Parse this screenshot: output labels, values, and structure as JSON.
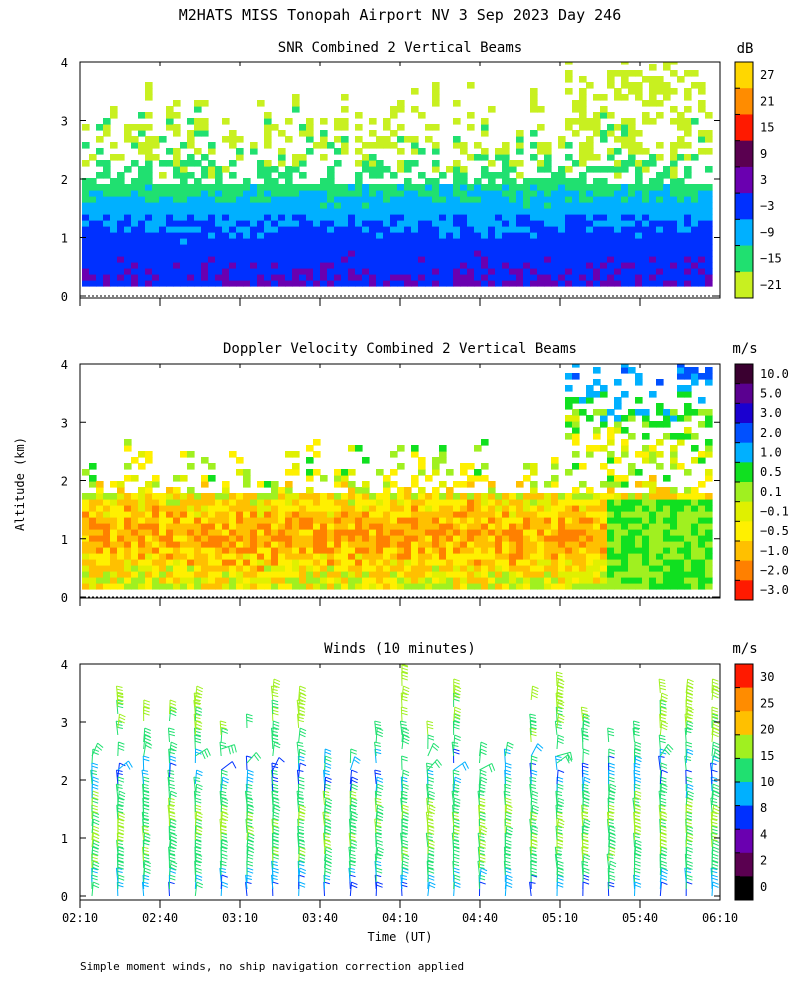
{
  "figure": {
    "title": "M2HATS MISS Tonopah Airport NV   3 Sep 2023 Day 246",
    "ylabel": "Altitude (km)",
    "xlabel": "Time (UT)",
    "footnote": "Simple moment winds, no ship navigation correction applied"
  },
  "chart_data": [
    {
      "type": "heatmap",
      "title": "SNR Combined 2 Vertical Beams",
      "units": "dB",
      "xlabel": "",
      "ylabel": "Altitude (km)",
      "ylim": [
        0,
        4
      ],
      "yticks": [
        "0",
        "1",
        "2",
        "3",
        "4"
      ],
      "xlim": [
        "02:10",
        "06:10"
      ],
      "colorbar_labels": [
        "27",
        "21",
        "15",
        "9",
        "3",
        "−3",
        "−9",
        "−15",
        "−21"
      ],
      "colorbar_colors": [
        "#ffd700",
        "#ff8c00",
        "#ff1a00",
        "#5a0050",
        "#6a00b0",
        "#0030ff",
        "#00b0ff",
        "#20e070",
        "#c8f020"
      ],
      "profile": {
        "altitude_km": [
          0.15,
          0.4,
          0.8,
          1.2,
          1.6,
          2.0,
          2.5,
          3.0,
          3.5,
          4.0
        ],
        "typical_snr_db": [
          0,
          -1,
          -3,
          -6,
          -11,
          -16,
          -19,
          -20,
          -21,
          -21
        ]
      }
    },
    {
      "type": "heatmap",
      "title": "Doppler Velocity Combined 2 Vertical Beams",
      "units": "m/s",
      "xlabel": "",
      "ylabel": "Altitude (km)",
      "ylim": [
        0,
        4
      ],
      "yticks": [
        "0",
        "1",
        "2",
        "3",
        "4"
      ],
      "xlim": [
        "02:10",
        "06:10"
      ],
      "colorbar_labels": [
        "10.0",
        "5.0",
        "3.0",
        "2.0",
        "1.0",
        "0.5",
        "0.1",
        "−0.1",
        "−0.5",
        "−1.0",
        "−2.0",
        "−3.0"
      ],
      "colorbar_colors": [
        "#3a0030",
        "#5a0090",
        "#1a00d0",
        "#0050ff",
        "#00b0ff",
        "#10e020",
        "#a0f020",
        "#e0f000",
        "#fff000",
        "#ffc000",
        "#ff8000",
        "#ff1a00"
      ],
      "profile": {
        "altitude_km": [
          0.2,
          0.5,
          1.0,
          1.5,
          2.0,
          3.0,
          3.8
        ],
        "typical_velocity_ms": [
          -0.1,
          -0.5,
          -1.0,
          -0.5,
          0.1,
          0.5,
          2.0
        ]
      }
    },
    {
      "type": "barbs",
      "title": "Winds (10 minutes)",
      "units": "m/s",
      "xlabel": "Time (UT)",
      "ylabel": "Altitude (km)",
      "ylim": [
        0,
        4
      ],
      "yticks": [
        "0",
        "1",
        "2",
        "3",
        "4"
      ],
      "xlim": [
        "02:10",
        "06:10"
      ],
      "xticks": [
        "02:10",
        "02:40",
        "03:10",
        "03:40",
        "04:10",
        "04:40",
        "05:10",
        "05:40",
        "06:10"
      ],
      "colorbar_labels": [
        "30",
        "25",
        "20",
        "15",
        "10",
        "8",
        "4",
        "2",
        "0"
      ],
      "colorbar_colors": [
        "#ff1a00",
        "#ff8c00",
        "#ffc000",
        "#a0f020",
        "#20e070",
        "#00b0ff",
        "#0030ff",
        "#6a00b0",
        "#5a0050",
        "#000000"
      ],
      "profile": {
        "altitude_km": [
          0.0,
          0.5,
          1.0,
          1.5,
          2.0,
          2.5,
          3.0,
          3.5,
          4.0
        ],
        "typical_speed_ms": [
          8,
          13,
          15,
          14,
          8,
          12,
          16,
          18,
          17
        ]
      }
    }
  ]
}
